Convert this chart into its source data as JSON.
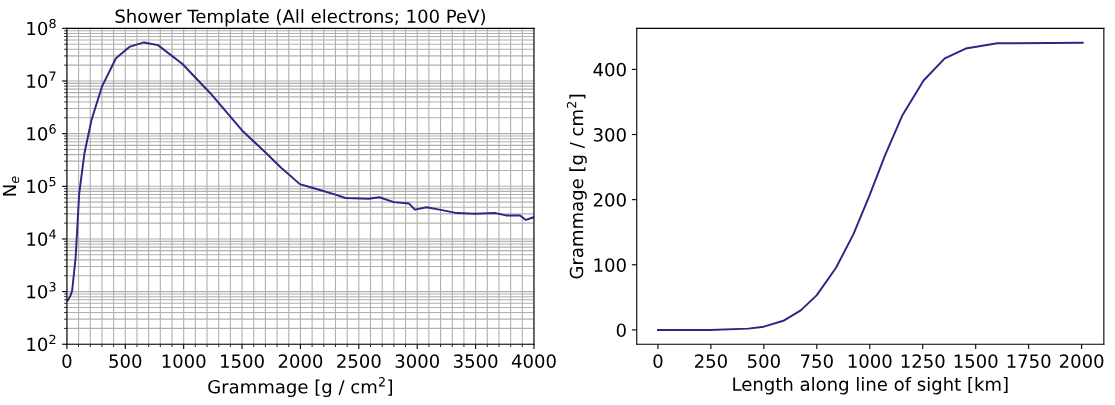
{
  "chart_data": [
    {
      "type": "line",
      "title": "Shower Template (All electrons; 100 PeV)",
      "xlabel": "Grammage [g / cm$^{2}$]",
      "ylabel": "N$_{e}$",
      "log": "y",
      "grid": true,
      "xlim": [
        0,
        4000
      ],
      "xticks": [
        0,
        500,
        1000,
        1500,
        2000,
        2500,
        3000,
        3500,
        4000
      ],
      "ylim": [
        100,
        100000000
      ],
      "yticks": [
        {
          "value": 100,
          "label": "10$^{2}$"
        },
        {
          "value": 1000,
          "label": "10$^{3}$"
        },
        {
          "value": 10000,
          "label": "10$^{4}$"
        },
        {
          "value": 100000,
          "label": "10$^{5}$"
        },
        {
          "value": 1000000,
          "label": "10$^{6}$"
        },
        {
          "value": 10000000,
          "label": "10$^{7}$"
        },
        {
          "value": 100000000,
          "label": "10$^{8}$"
        }
      ],
      "series": [
        {
          "color": "#2e2585",
          "x": [
            6,
            30,
            45,
            75,
            105,
            150,
            210,
            300,
            420,
            540,
            660,
            780,
            990,
            1230,
            1500,
            1710,
            1830,
            1995,
            2130,
            2280,
            2385,
            2585,
            2675,
            2800,
            2930,
            2980,
            3080,
            3190,
            3340,
            3490,
            3670,
            3760,
            3880,
            3930,
            4000
          ],
          "values": [
            670,
            830,
            1050,
            4500,
            72000,
            420000,
            1800000,
            7800000,
            27000000,
            45000000,
            54000000,
            48000000,
            21000000,
            5800000,
            1150000,
            420000,
            230000,
            110000,
            90000,
            72000,
            60000,
            58000,
            62000,
            50000,
            47000,
            36000,
            40000,
            36000,
            31000,
            30000,
            31000,
            28000,
            28000,
            23000,
            26000
          ]
        }
      ]
    },
    {
      "type": "line",
      "xlabel": "Length along line of sight [km]",
      "ylabel": "Grammage [g / cm$^{2}$]",
      "xlim": [
        -100,
        2105
      ],
      "xticks": [
        0,
        250,
        500,
        750,
        1000,
        1250,
        1500,
        1750,
        2000
      ],
      "ylim": [
        -22,
        463
      ],
      "yticks": [
        0,
        100,
        200,
        300,
        400
      ],
      "series": [
        {
          "color": "#2e2585",
          "x": [
            0,
            244,
            426,
            500,
            592,
            674,
            749,
            840,
            923,
            997,
            1072,
            1155,
            1254,
            1354,
            1453,
            1602,
            2005
          ],
          "values": [
            0,
            0,
            2,
            5,
            14,
            30,
            53,
            95,
            147,
            205,
            268,
            330,
            383,
            417,
            432,
            440,
            441
          ]
        }
      ]
    }
  ]
}
